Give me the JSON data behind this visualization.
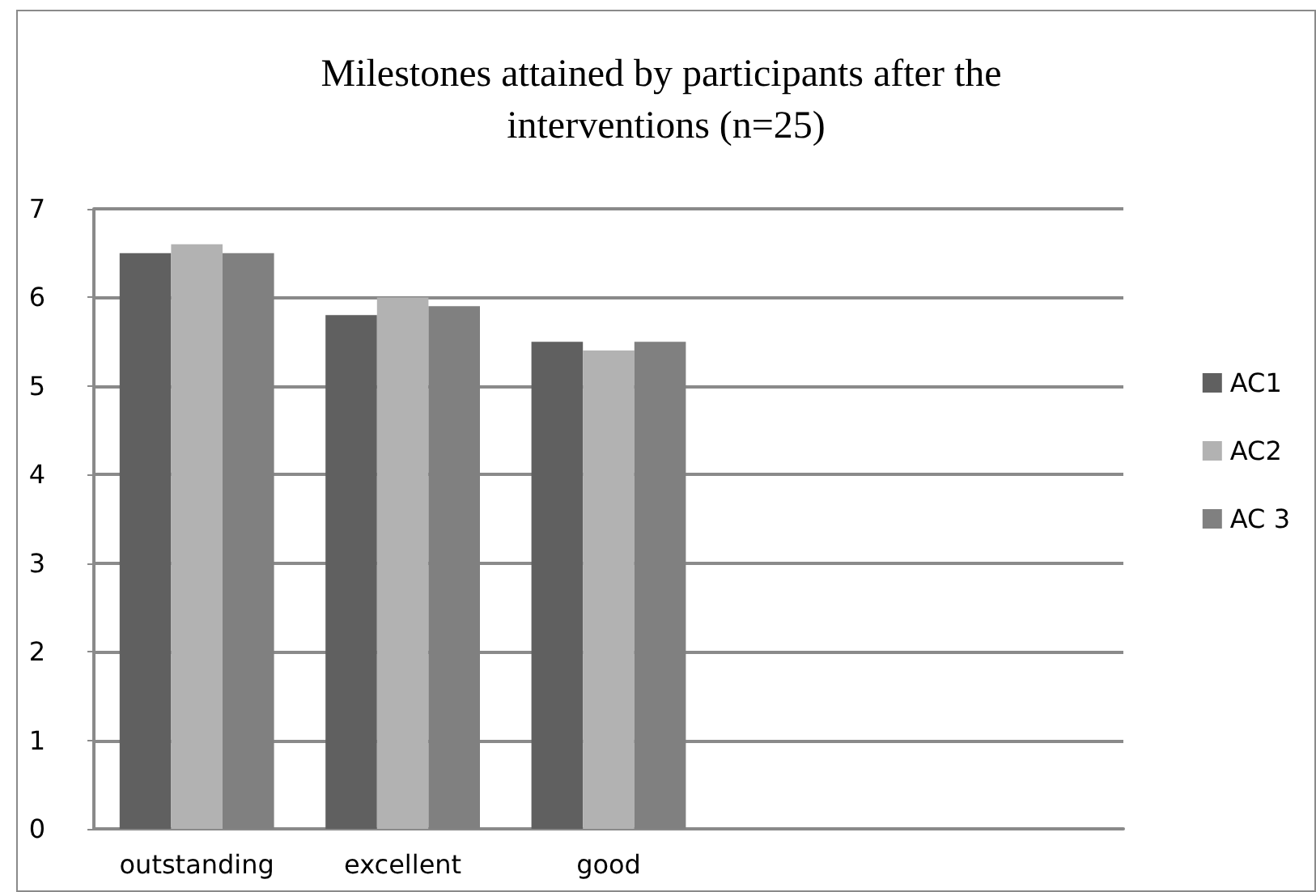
{
  "chart_data": {
    "type": "bar",
    "title": "Milestones attained by participants after the interventions (n=25)",
    "categories": [
      "outstanding",
      "excellent",
      "good",
      null,
      null
    ],
    "series": [
      {
        "name": "AC1",
        "color": "#606060",
        "values": [
          6.5,
          5.8,
          5.5,
          null,
          null
        ]
      },
      {
        "name": "AC2",
        "color": "#b2b2b2",
        "values": [
          6.6,
          6.0,
          5.4,
          null,
          null
        ]
      },
      {
        "name": "AC 3",
        "color": "#808080",
        "values": [
          6.5,
          5.9,
          5.5,
          null,
          null
        ]
      }
    ],
    "ylim": [
      0,
      7
    ],
    "yticks": [
      0,
      1,
      2,
      3,
      4,
      5,
      6,
      7
    ],
    "grid": "y",
    "legend": "right"
  }
}
